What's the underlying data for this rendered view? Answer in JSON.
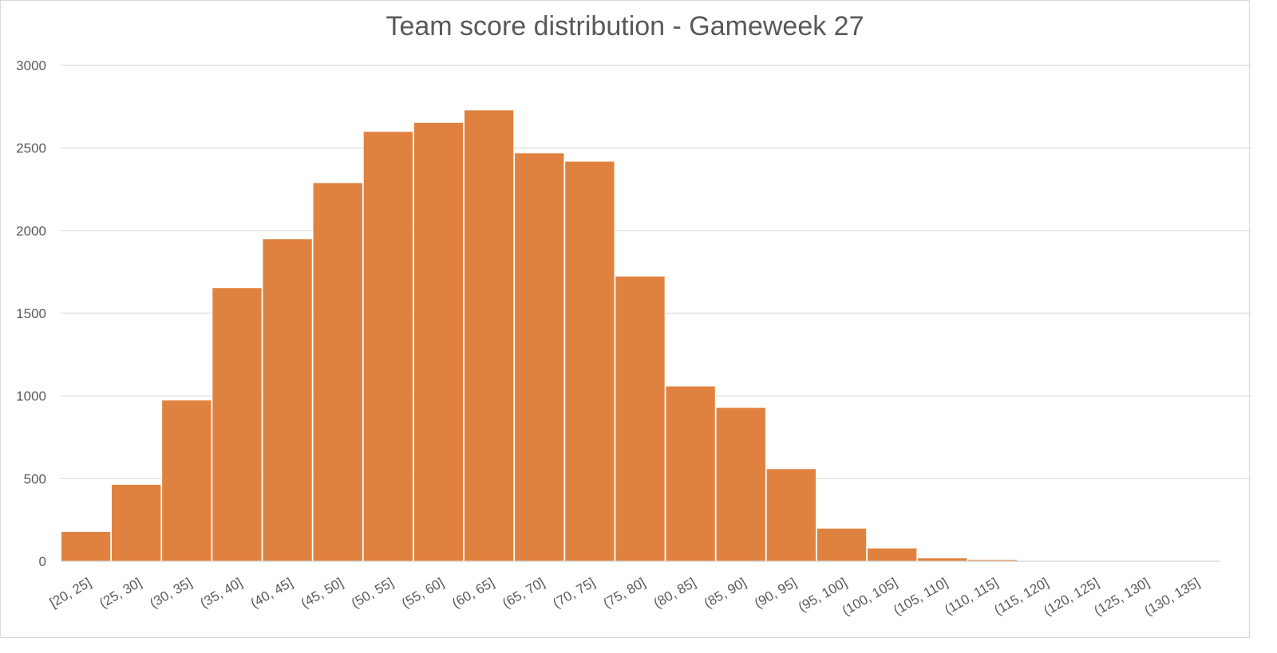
{
  "chart_data": {
    "type": "bar",
    "title": "Team score distribution - Gameweek 27",
    "xlabel": "",
    "ylabel": "",
    "ylim": [
      0,
      3000
    ],
    "yticks": [
      0,
      500,
      1000,
      1500,
      2000,
      2500,
      3000
    ],
    "grid": true,
    "legend": "none",
    "color": "#e0823f",
    "categories": [
      "[20, 25]",
      "(25, 30]",
      "(30, 35]",
      "(35, 40]",
      "(40, 45]",
      "(45, 50]",
      "(50, 55]",
      "(55, 60]",
      "(60, 65]",
      "(65, 70]",
      "(70, 75]",
      "(75, 80]",
      "(80, 85]",
      "(85, 90]",
      "(90, 95]",
      "(95, 100]",
      "(100, 105]",
      "(105, 110]",
      "(110, 115]",
      "(115, 120]",
      "(120, 125]",
      "(125, 130]",
      "(130, 135]"
    ],
    "values": [
      180,
      465,
      975,
      1655,
      1950,
      2290,
      2600,
      2655,
      2730,
      2470,
      2420,
      1725,
      1060,
      930,
      560,
      200,
      80,
      20,
      10,
      4,
      1,
      0,
      0
    ]
  }
}
